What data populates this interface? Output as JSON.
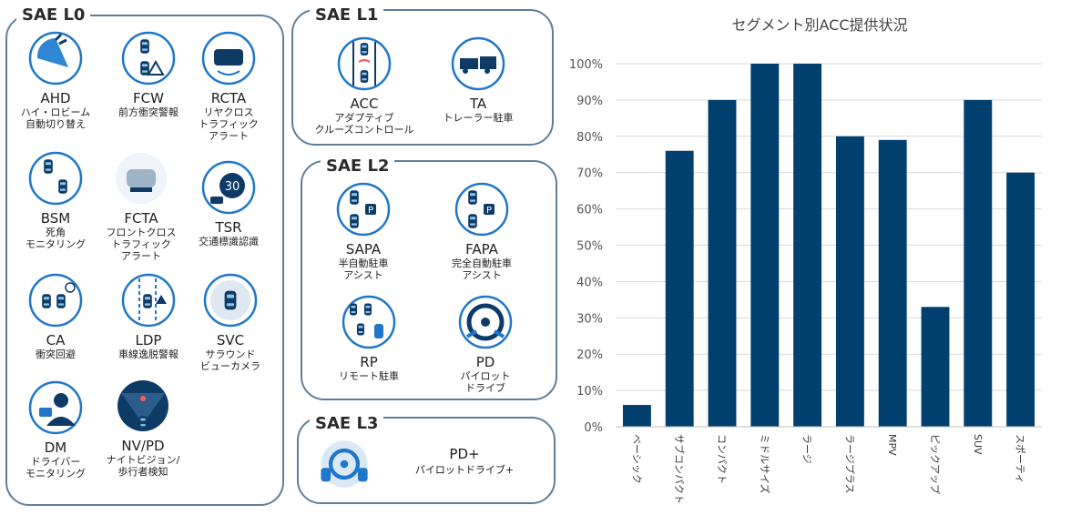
{
  "groups": [
    {
      "id": "l0",
      "title": "SAE L0",
      "features": [
        {
          "abbr": "AHD",
          "jp": "ハイ・ロビーム\n自動切り替え",
          "icon": "high-beam-icon"
        },
        {
          "abbr": "FCW",
          "jp": "前方衝突警報",
          "icon": "forward-collision-icon"
        },
        {
          "abbr": "RCTA",
          "jp": "リヤクロス\nトラフィック\nアラート",
          "icon": "rear-cross-traffic-icon"
        },
        {
          "abbr": "BSM",
          "jp": "死角\nモニタリング",
          "icon": "blind-spot-icon"
        },
        {
          "abbr": "FCTA",
          "jp": "フロントクロス\nトラフィック\nアラート",
          "icon": "front-cross-traffic-icon"
        },
        {
          "abbr": "TSR",
          "jp": "交通標識認識",
          "icon": "speed-sign-icon"
        },
        {
          "abbr": "CA",
          "jp": "衝突回避",
          "icon": "collision-avoidance-icon"
        },
        {
          "abbr": "LDP",
          "jp": "車線逸脱警報",
          "icon": "lane-departure-icon"
        },
        {
          "abbr": "SVC",
          "jp": "サラウンド\nビューカメラ",
          "icon": "surround-view-icon"
        },
        {
          "abbr": "DM",
          "jp": "ドライバー\nモニタリング",
          "icon": "driver-monitor-icon"
        },
        {
          "abbr": "NV/PD",
          "jp": "ナイトビジョン/\n歩行者検知",
          "icon": "night-vision-icon"
        }
      ]
    },
    {
      "id": "l1",
      "title": "SAE L1",
      "features": [
        {
          "abbr": "ACC",
          "jp": "アダプティブ\nクルーズコントロール",
          "icon": "adaptive-cruise-icon"
        },
        {
          "abbr": "TA",
          "jp": "トレーラー駐車",
          "icon": "trailer-icon"
        }
      ]
    },
    {
      "id": "l2",
      "title": "SAE L2",
      "features": [
        {
          "abbr": "SAPA",
          "jp": "半自動駐車\nアシスト",
          "icon": "semi-auto-parking-icon"
        },
        {
          "abbr": "FAPA",
          "jp": "完全自動駐車\nアシスト",
          "icon": "full-auto-parking-icon"
        },
        {
          "abbr": "RP",
          "jp": "リモート駐車",
          "icon": "remote-parking-icon"
        },
        {
          "abbr": "PD",
          "jp": "パイロット\nドライブ",
          "icon": "pilot-drive-icon"
        }
      ]
    },
    {
      "id": "l3",
      "title": "SAE L3",
      "features": [
        {
          "abbr": "PD+",
          "jp": "パイロットドライブ+",
          "icon": "pilot-drive-plus-icon"
        }
      ]
    }
  ],
  "colors": {
    "accent": "#1f77c9",
    "dark": "#0d3b66",
    "bar": "#003f6e",
    "border": "#5f7f99"
  },
  "chart_data": {
    "type": "bar",
    "title": "セグメント別ACC提供状況",
    "categories": [
      "ベーシック",
      "サブコンパクト",
      "コンパクト",
      "ミドルサイズ",
      "ラージ",
      "ラージプラス",
      "MPV",
      "ピックアップ",
      "SUV",
      "スポーティ"
    ],
    "values": [
      6,
      76,
      90,
      100,
      100,
      80,
      79,
      33,
      90,
      70
    ],
    "ylim": [
      0,
      100
    ],
    "yticks": [
      "0%",
      "10%",
      "20%",
      "30%",
      "40%",
      "50%",
      "60%",
      "70%",
      "80%",
      "90%",
      "100%"
    ],
    "grid": true,
    "xlabel": "",
    "ylabel": ""
  }
}
